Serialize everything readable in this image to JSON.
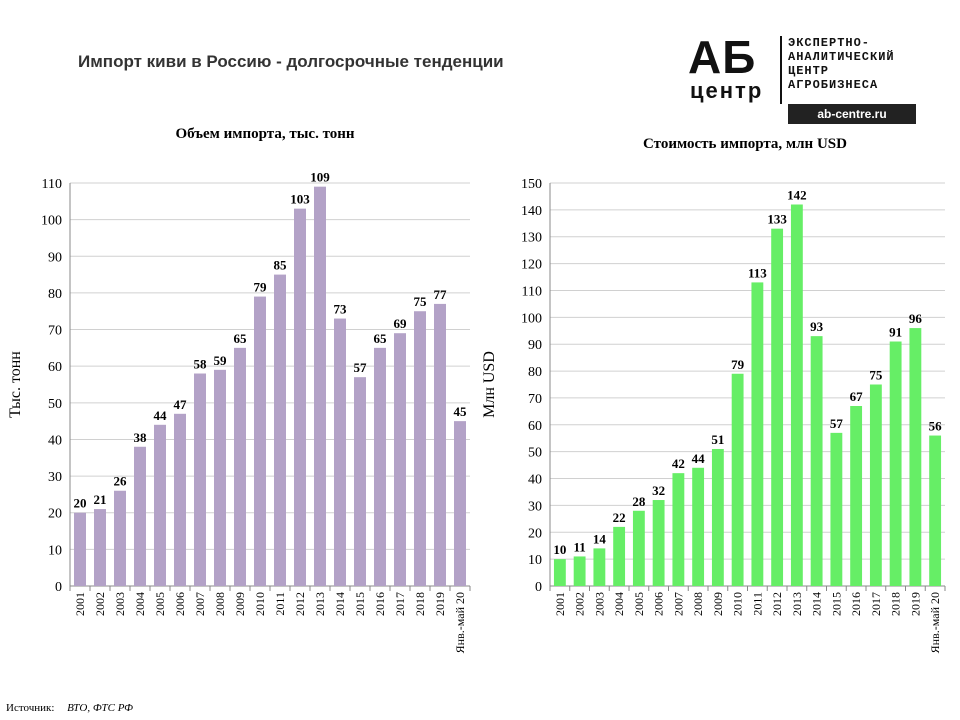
{
  "page": {
    "title": "Импорт киви в Россию - долгосрочные тенденции",
    "source_label": "Источник:",
    "source_value": "ВТО, ФТС РФ"
  },
  "logo": {
    "mark": "АБ",
    "sub": "центр",
    "lines": [
      "ЭКСПЕРТНО-",
      "АНАЛИТИЧЕСКИЙ",
      "ЦЕНТР",
      "АГРОБИЗНЕСА"
    ],
    "url": "ab-centre.ru"
  },
  "chart_data": [
    {
      "type": "bar",
      "title": "Объем импорта, тыс. тонн",
      "ylabel": "Тыс. тонн",
      "xlabel": "",
      "color": "#b3a2c7",
      "categories": [
        "2001",
        "2002",
        "2003",
        "2004",
        "2005",
        "2006",
        "2007",
        "2008",
        "2009",
        "2010",
        "2011",
        "2012",
        "2013",
        "2014",
        "2015",
        "2016",
        "2017",
        "2018",
        "2019",
        "Янв.-май 20"
      ],
      "values": [
        20,
        21,
        26,
        38,
        44,
        47,
        58,
        59,
        65,
        79,
        85,
        103,
        109,
        73,
        57,
        65,
        69,
        75,
        77,
        45
      ],
      "value_labels": [
        "20",
        "21",
        "26",
        "38",
        "44",
        "47",
        "58",
        "59",
        "65",
        "79",
        "85",
        "103",
        "109",
        "73",
        "57",
        "65",
        "69",
        "75",
        "77",
        "45"
      ],
      "ylim": [
        0,
        110
      ],
      "yticks": [
        0,
        10,
        20,
        30,
        40,
        50,
        60,
        70,
        80,
        90,
        100,
        110
      ],
      "grid": true
    },
    {
      "type": "bar",
      "title": "Стоимость импорта, млн USD",
      "ylabel": "Млн USD",
      "xlabel": "",
      "color": "#66ee66",
      "categories": [
        "2001",
        "2002",
        "2003",
        "2004",
        "2005",
        "2006",
        "2007",
        "2008",
        "2009",
        "2010",
        "2011",
        "2012",
        "2013",
        "2014",
        "2015",
        "2016",
        "2017",
        "2018",
        "2019",
        "Янв.-май 20"
      ],
      "values": [
        10,
        11,
        14,
        22,
        28,
        32,
        42,
        44,
        51,
        79,
        113,
        133,
        142,
        93,
        57,
        67,
        75,
        91,
        96,
        56
      ],
      "value_labels": [
        "10",
        "11",
        "14",
        "22",
        "28",
        "32",
        "42",
        "44",
        "51",
        "79",
        "113",
        "133",
        "142",
        "93",
        "57",
        "67",
        "75",
        "91",
        "96",
        "56"
      ],
      "ylim": [
        0,
        150
      ],
      "yticks": [
        0,
        10,
        20,
        30,
        40,
        50,
        60,
        70,
        80,
        90,
        100,
        110,
        120,
        130,
        140,
        150
      ],
      "grid": true
    }
  ]
}
